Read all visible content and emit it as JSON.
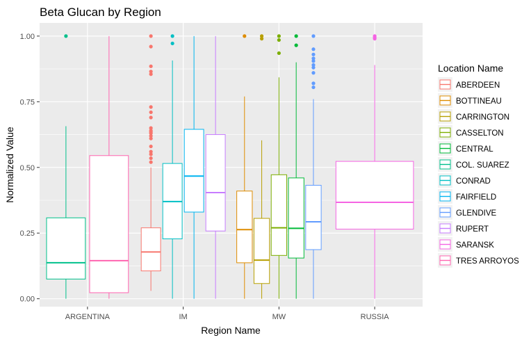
{
  "chart_data": {
    "type": "boxplot",
    "title": "Beta Glucan by Region",
    "xlabel": "Region Name",
    "ylabel": "Normalized Value",
    "ylim": [
      -0.03,
      1.05
    ],
    "y_ticks": [
      "0.00",
      "0.25",
      "0.50",
      "0.75",
      "1.00"
    ],
    "y_tick_values": [
      0,
      0.25,
      0.5,
      0.75,
      1.0
    ],
    "categories": [
      "ARGENTINA",
      "IM",
      "MW",
      "RUSSIA"
    ],
    "legend_title": "Location Name",
    "legend_position": "right",
    "legend": [
      {
        "name": "ABERDEEN",
        "color": "#F8766D"
      },
      {
        "name": "BOTTINEAU",
        "color": "#DE8C00"
      },
      {
        "name": "CARRINGTON",
        "color": "#B79F00"
      },
      {
        "name": "CASSELTON",
        "color": "#7CAE00"
      },
      {
        "name": "CENTRAL",
        "color": "#00BA38"
      },
      {
        "name": "COL. SUAREZ",
        "color": "#00C08B"
      },
      {
        "name": "CONRAD",
        "color": "#00BFC4"
      },
      {
        "name": "FAIRFIELD",
        "color": "#00B4F0"
      },
      {
        "name": "GLENDIVE",
        "color": "#619CFF"
      },
      {
        "name": "RUPERT",
        "color": "#C77CFF"
      },
      {
        "name": "SARANSK",
        "color": "#F564E3"
      },
      {
        "name": "TRES ARROYOS",
        "color": "#FF64B0"
      }
    ],
    "boxes": [
      {
        "region": "ARGENTINA",
        "location": "COL. SUAREZ",
        "color": "#00C08B",
        "slot": 0,
        "n_slots": 2,
        "min": 0.0,
        "q1": 0.075,
        "median": 0.137,
        "q3": 0.308,
        "max": 0.657,
        "outliers": [
          1.0
        ]
      },
      {
        "region": "ARGENTINA",
        "location": "TRES ARROYOS",
        "color": "#FF64B0",
        "slot": 1,
        "n_slots": 2,
        "min": 0.0,
        "q1": 0.023,
        "median": 0.145,
        "q3": 0.545,
        "max": 1.0,
        "outliers": []
      },
      {
        "region": "IM",
        "location": "ABERDEEN",
        "color": "#F8766D",
        "slot": 0,
        "n_slots": 4,
        "min": 0.03,
        "q1": 0.106,
        "median": 0.178,
        "q3": 0.27,
        "max": 0.5,
        "outliers": [
          0.52,
          0.535,
          0.55,
          0.56,
          0.58,
          0.61,
          0.62,
          0.63,
          0.635,
          0.64,
          0.65,
          0.69,
          0.71,
          0.73,
          0.855,
          0.865,
          0.885,
          0.96,
          1.0
        ]
      },
      {
        "region": "IM",
        "location": "CONRAD",
        "color": "#00BFC4",
        "slot": 1,
        "n_slots": 4,
        "min": 0.0,
        "q1": 0.228,
        "median": 0.37,
        "q3": 0.515,
        "max": 0.907,
        "outliers": [
          0.972,
          1.0
        ]
      },
      {
        "region": "IM",
        "location": "FAIRFIELD",
        "color": "#00B4F0",
        "slot": 2,
        "n_slots": 4,
        "min": 0.0,
        "q1": 0.33,
        "median": 0.467,
        "q3": 0.645,
        "max": 1.0,
        "outliers": []
      },
      {
        "region": "IM",
        "location": "RUPERT",
        "color": "#C77CFF",
        "slot": 3,
        "n_slots": 4,
        "min": 0.0,
        "q1": 0.258,
        "median": 0.404,
        "q3": 0.625,
        "max": 1.0,
        "outliers": []
      },
      {
        "region": "MW",
        "location": "BOTTINEAU",
        "color": "#DE8C00",
        "slot": 0,
        "n_slots": 5,
        "min": 0.0,
        "q1": 0.137,
        "median": 0.263,
        "q3": 0.41,
        "max": 0.77,
        "outliers": [
          1.0
        ]
      },
      {
        "region": "MW",
        "location": "CARRINGTON",
        "color": "#B79F00",
        "slot": 1,
        "n_slots": 5,
        "min": 0.0,
        "q1": 0.058,
        "median": 0.147,
        "q3": 0.306,
        "max": 0.603,
        "outliers": [
          0.99,
          1.0
        ]
      },
      {
        "region": "MW",
        "location": "CASSELTON",
        "color": "#7CAE00",
        "slot": 2,
        "n_slots": 5,
        "min": 0.0,
        "q1": 0.165,
        "median": 0.27,
        "q3": 0.472,
        "max": 0.843,
        "outliers": [
          0.935,
          0.985,
          1.0
        ]
      },
      {
        "region": "MW",
        "location": "CENTRAL",
        "color": "#00BA38",
        "slot": 3,
        "n_slots": 5,
        "min": 0.0,
        "q1": 0.155,
        "median": 0.268,
        "q3": 0.46,
        "max": 0.9,
        "outliers": [
          0.965,
          1.0
        ]
      },
      {
        "region": "MW",
        "location": "GLENDIVE",
        "color": "#619CFF",
        "slot": 4,
        "n_slots": 5,
        "min": 0.0,
        "q1": 0.187,
        "median": 0.293,
        "q3": 0.432,
        "max": 0.76,
        "outliers": [
          0.805,
          0.82,
          0.86,
          0.88,
          0.89,
          0.905,
          0.915,
          0.93,
          0.95,
          1.0
        ]
      },
      {
        "region": "RUSSIA",
        "location": "SARANSK",
        "color": "#F564E3",
        "slot": 0,
        "n_slots": 1,
        "min": 0.0,
        "q1": 0.265,
        "median": 0.367,
        "q3": 0.523,
        "max": 0.89,
        "outliers": [
          0.99,
          0.995,
          1.0
        ]
      }
    ]
  }
}
